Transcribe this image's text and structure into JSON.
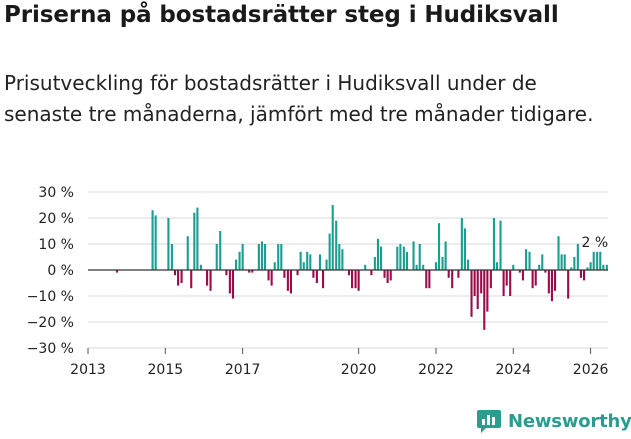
{
  "title": "Priserna på bostadsrätter steg i Hudiksvall",
  "subtitle": "Prisutveckling för bostadsrätter i Hudiksvall under de senaste tre månaderna, jämfört med tre månader tidigare.",
  "brand": "Newsworthy",
  "colors": {
    "positive": "#1a9e8f",
    "negative": "#9b0a4b",
    "grid": "#d9d9d9",
    "zero": "#333333",
    "logo": "#2a9d8f"
  },
  "chart_data": {
    "type": "bar",
    "title": "Priserna på bostadsrätter steg i Hudiksvall",
    "xlabel": "",
    "ylabel": "",
    "unit": "%",
    "ylim": [
      -30,
      30
    ],
    "yticks": [
      30,
      20,
      10,
      0,
      -10,
      -20,
      -30
    ],
    "ytick_labels": [
      "30 %",
      "20 %",
      "10 %",
      "0 %",
      "−10 %",
      "−20 %",
      "−30 %"
    ],
    "xlim": [
      2013.0,
      2026.45
    ],
    "xticks": [
      2013,
      2015,
      2017,
      2020,
      2022,
      2024,
      2026
    ],
    "last_label": "2 %",
    "series": [
      {
        "name": "Prisutveckling",
        "points": [
          {
            "x": 2013.75,
            "v": -1
          },
          {
            "x": 2014.67,
            "v": 23
          },
          {
            "x": 2014.75,
            "v": 21
          },
          {
            "x": 2015.08,
            "v": 20
          },
          {
            "x": 2015.17,
            "v": 10
          },
          {
            "x": 2015.25,
            "v": -2
          },
          {
            "x": 2015.33,
            "v": -6
          },
          {
            "x": 2015.42,
            "v": -5
          },
          {
            "x": 2015.58,
            "v": 13
          },
          {
            "x": 2015.67,
            "v": -7
          },
          {
            "x": 2015.75,
            "v": 22
          },
          {
            "x": 2015.83,
            "v": 24
          },
          {
            "x": 2015.92,
            "v": 2
          },
          {
            "x": 2016.08,
            "v": -6
          },
          {
            "x": 2016.17,
            "v": -8
          },
          {
            "x": 2016.33,
            "v": 10
          },
          {
            "x": 2016.42,
            "v": 15
          },
          {
            "x": 2016.58,
            "v": -2
          },
          {
            "x": 2016.67,
            "v": -9
          },
          {
            "x": 2016.75,
            "v": -11
          },
          {
            "x": 2016.83,
            "v": 4
          },
          {
            "x": 2016.92,
            "v": 7
          },
          {
            "x": 2017.0,
            "v": 10
          },
          {
            "x": 2017.17,
            "v": -1
          },
          {
            "x": 2017.25,
            "v": -1
          },
          {
            "x": 2017.42,
            "v": 10
          },
          {
            "x": 2017.5,
            "v": 11
          },
          {
            "x": 2017.58,
            "v": 10
          },
          {
            "x": 2017.67,
            "v": -4
          },
          {
            "x": 2017.75,
            "v": -6
          },
          {
            "x": 2017.83,
            "v": 3
          },
          {
            "x": 2017.92,
            "v": 10
          },
          {
            "x": 2018.0,
            "v": 10
          },
          {
            "x": 2018.08,
            "v": -3
          },
          {
            "x": 2018.17,
            "v": -8
          },
          {
            "x": 2018.25,
            "v": -9
          },
          {
            "x": 2018.42,
            "v": -2
          },
          {
            "x": 2018.5,
            "v": 7
          },
          {
            "x": 2018.58,
            "v": 3
          },
          {
            "x": 2018.67,
            "v": 7
          },
          {
            "x": 2018.75,
            "v": 6
          },
          {
            "x": 2018.83,
            "v": -3
          },
          {
            "x": 2018.92,
            "v": -5
          },
          {
            "x": 2019.0,
            "v": 6
          },
          {
            "x": 2019.08,
            "v": -7
          },
          {
            "x": 2019.17,
            "v": 4
          },
          {
            "x": 2019.25,
            "v": 14
          },
          {
            "x": 2019.33,
            "v": 25
          },
          {
            "x": 2019.42,
            "v": 19
          },
          {
            "x": 2019.5,
            "v": 10
          },
          {
            "x": 2019.58,
            "v": 8
          },
          {
            "x": 2019.75,
            "v": -2
          },
          {
            "x": 2019.83,
            "v": -7
          },
          {
            "x": 2019.92,
            "v": -7
          },
          {
            "x": 2020.0,
            "v": -8
          },
          {
            "x": 2020.17,
            "v": 2
          },
          {
            "x": 2020.33,
            "v": -2
          },
          {
            "x": 2020.42,
            "v": 5
          },
          {
            "x": 2020.5,
            "v": 12
          },
          {
            "x": 2020.58,
            "v": 9
          },
          {
            "x": 2020.67,
            "v": -3
          },
          {
            "x": 2020.75,
            "v": -5
          },
          {
            "x": 2020.83,
            "v": -4
          },
          {
            "x": 2021.0,
            "v": 9
          },
          {
            "x": 2021.08,
            "v": 10
          },
          {
            "x": 2021.17,
            "v": 9
          },
          {
            "x": 2021.25,
            "v": 7
          },
          {
            "x": 2021.42,
            "v": 11
          },
          {
            "x": 2021.5,
            "v": 2
          },
          {
            "x": 2021.58,
            "v": 10
          },
          {
            "x": 2021.67,
            "v": 2
          },
          {
            "x": 2021.75,
            "v": -7
          },
          {
            "x": 2021.83,
            "v": -7
          },
          {
            "x": 2022.0,
            "v": 3
          },
          {
            "x": 2022.08,
            "v": 18
          },
          {
            "x": 2022.17,
            "v": 5
          },
          {
            "x": 2022.25,
            "v": 11
          },
          {
            "x": 2022.33,
            "v": -3
          },
          {
            "x": 2022.42,
            "v": -7
          },
          {
            "x": 2022.58,
            "v": -3
          },
          {
            "x": 2022.67,
            "v": 20
          },
          {
            "x": 2022.75,
            "v": 16
          },
          {
            "x": 2022.83,
            "v": 4
          },
          {
            "x": 2022.92,
            "v": -18
          },
          {
            "x": 2023.0,
            "v": -10
          },
          {
            "x": 2023.08,
            "v": -15
          },
          {
            "x": 2023.17,
            "v": -9
          },
          {
            "x": 2023.25,
            "v": -23
          },
          {
            "x": 2023.33,
            "v": -16
          },
          {
            "x": 2023.42,
            "v": -7
          },
          {
            "x": 2023.5,
            "v": 20
          },
          {
            "x": 2023.58,
            "v": 3
          },
          {
            "x": 2023.67,
            "v": 19
          },
          {
            "x": 2023.75,
            "v": -10
          },
          {
            "x": 2023.83,
            "v": -6
          },
          {
            "x": 2023.92,
            "v": -10
          },
          {
            "x": 2024.0,
            "v": 2
          },
          {
            "x": 2024.17,
            "v": -1
          },
          {
            "x": 2024.25,
            "v": -4
          },
          {
            "x": 2024.33,
            "v": 8
          },
          {
            "x": 2024.42,
            "v": 7
          },
          {
            "x": 2024.5,
            "v": -7
          },
          {
            "x": 2024.58,
            "v": -6
          },
          {
            "x": 2024.67,
            "v": 2
          },
          {
            "x": 2024.75,
            "v": 6
          },
          {
            "x": 2024.83,
            "v": -1
          },
          {
            "x": 2024.92,
            "v": -9
          },
          {
            "x": 2025.0,
            "v": -12
          },
          {
            "x": 2025.08,
            "v": -8
          },
          {
            "x": 2025.17,
            "v": 13
          },
          {
            "x": 2025.25,
            "v": 6
          },
          {
            "x": 2025.33,
            "v": 6
          },
          {
            "x": 2025.42,
            "v": -11
          },
          {
            "x": 2025.5,
            "v": 1
          },
          {
            "x": 2025.58,
            "v": 5
          },
          {
            "x": 2025.67,
            "v": 10
          },
          {
            "x": 2025.75,
            "v": -3
          },
          {
            "x": 2025.83,
            "v": -4
          },
          {
            "x": 2025.92,
            "v": 1
          },
          {
            "x": 2026.0,
            "v": 3
          },
          {
            "x": 2026.08,
            "v": 7
          },
          {
            "x": 2026.17,
            "v": 7
          },
          {
            "x": 2026.25,
            "v": 7
          },
          {
            "x": 2026.33,
            "v": 2
          },
          {
            "x": 2026.42,
            "v": 2
          }
        ]
      }
    ]
  }
}
